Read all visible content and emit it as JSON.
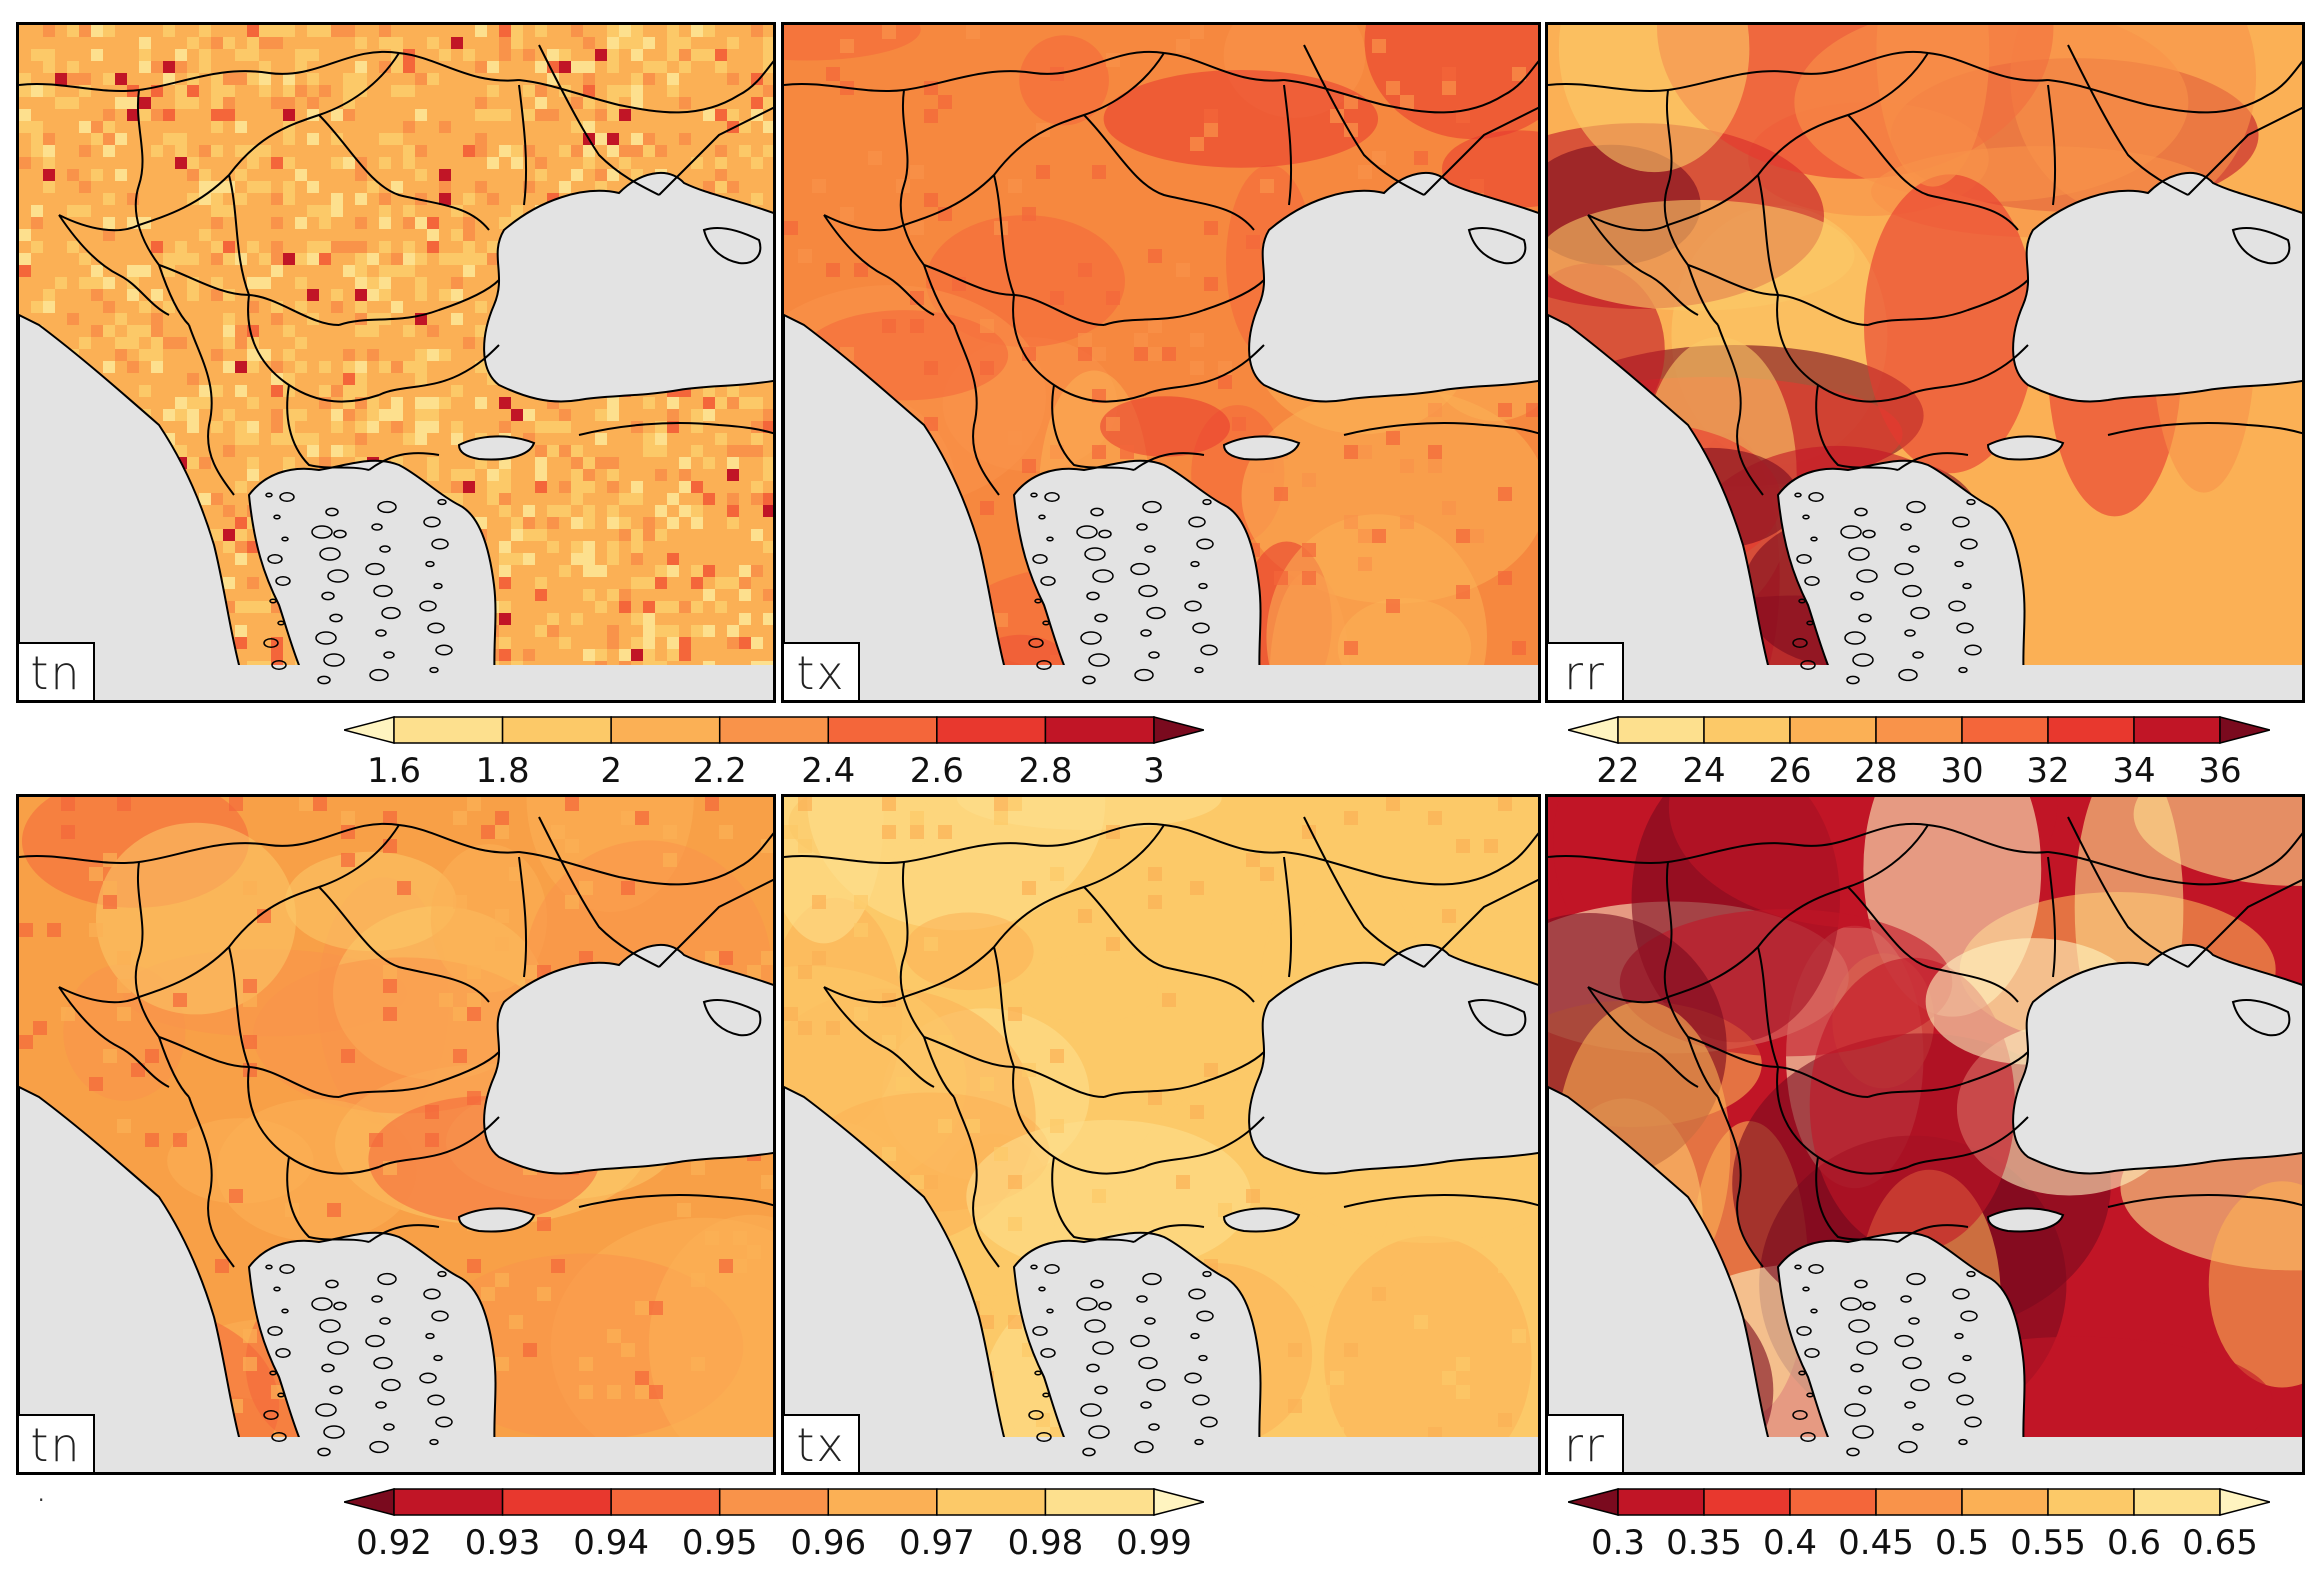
{
  "colors": {
    "land_base": "#f6b458",
    "sea": "#e3e3e3",
    "border": "#000000"
  },
  "palettes": {
    "warm_rising": [
      "#fff4c0",
      "#fde08e",
      "#fcc968",
      "#fbb055",
      "#f9934a",
      "#f4663a",
      "#e8382e",
      "#c11526",
      "#7a0a1e"
    ],
    "warm_falling": [
      "#7a0a1e",
      "#c11526",
      "#e8382e",
      "#f4663a",
      "#f9934a",
      "#fbb055",
      "#fcc968",
      "#fde08e",
      "#fff4c0"
    ]
  },
  "panels": [
    {
      "id": "top-tn",
      "label": "tn",
      "variable": "tn",
      "row": "top",
      "style": "speckled",
      "base": "#fbb055"
    },
    {
      "id": "top-tx",
      "label": "tx",
      "variable": "tx",
      "row": "top",
      "style": "smooth",
      "base": "#f6883f"
    },
    {
      "id": "top-rr",
      "label": "rr",
      "variable": "rr",
      "row": "top",
      "style": "blotchy",
      "base": "#fbb055"
    },
    {
      "id": "bottom-tn",
      "label": "tn",
      "variable": "tn",
      "row": "bottom",
      "style": "smooth",
      "base": "#f8a047"
    },
    {
      "id": "bottom-tx",
      "label": "tx",
      "variable": "tx",
      "row": "bottom",
      "style": "smooth",
      "base": "#fcc968"
    },
    {
      "id": "bottom-rr",
      "label": "rr",
      "variable": "rr",
      "row": "bottom",
      "style": "blotchy",
      "base": "#c11526"
    }
  ],
  "colorbars": [
    {
      "id": "top-temp",
      "ticks": [
        "1.6",
        "1.8",
        "2",
        "2.2",
        "2.4",
        "2.6",
        "2.8",
        "3"
      ],
      "palette": "warm_rising"
    },
    {
      "id": "top-precip",
      "ticks": [
        "22",
        "24",
        "26",
        "28",
        "30",
        "32",
        "34",
        "36"
      ],
      "palette": "warm_rising"
    },
    {
      "id": "bottom-temp",
      "ticks": [
        "0.92",
        "0.93",
        "0.94",
        "0.95",
        "0.96",
        "0.97",
        "0.98",
        "0.99"
      ],
      "palette": "warm_falling"
    },
    {
      "id": "bottom-precip",
      "ticks": [
        "0.3",
        "0.35",
        "0.4",
        "0.45",
        "0.5",
        "0.55",
        "0.6",
        "0.65"
      ],
      "palette": "warm_falling"
    }
  ],
  "stray_mark": "."
}
